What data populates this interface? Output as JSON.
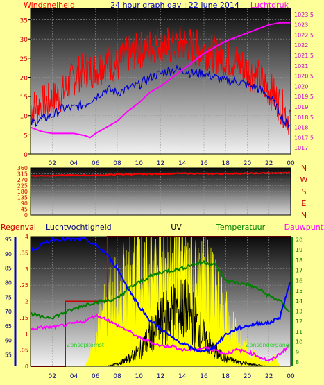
{
  "header": {
    "left_label": "Windsnelheid",
    "title": "24 hour graph day : 22 June 2014",
    "right_label": "Luchtdruk"
  },
  "lower_labels": {
    "regenval": "Regenval",
    "luchtvochtigheid": "Luchtvochtigheid",
    "uv": "UV",
    "temperatuur": "Temperatuur",
    "dauwpunt": "Dauwpunt",
    "sunrise": "Zonsopkomst",
    "sunset": "Zonsondergang"
  },
  "colors": {
    "background": "#ffff99",
    "wind_gust": "#ff0000",
    "wind_avg": "#0000cc",
    "pressure": "#ff00ff",
    "wind_dir": "#ff0000",
    "rain": "#cc0000",
    "humidity": "#0000ff",
    "uv": "#ffff00",
    "solar": "#000000",
    "temperature": "#008000",
    "dewpoint": "#ff00ff",
    "sun_label": "#33cc33"
  },
  "chart_data": [
    {
      "type": "line",
      "title": "24 hour graph day : 22 June 2014",
      "x_ticks": [
        "02",
        "04",
        "06",
        "08",
        "10",
        "12",
        "14",
        "16",
        "18",
        "20",
        "22",
        "00"
      ],
      "x_range_hours": [
        0,
        24
      ],
      "grid": true,
      "y_left": {
        "label": "Windsnelheid",
        "range": [
          0,
          38
        ],
        "ticks": [
          0,
          5,
          10,
          15,
          20,
          25,
          30,
          35
        ]
      },
      "y_right": {
        "label": "Luchtdruk",
        "range": [
          1016.7,
          1023.8
        ],
        "ticks": [
          1017,
          1017.5,
          1018,
          1018.5,
          1019,
          1019.5,
          1020,
          1020.5,
          1021,
          1021.5,
          1022,
          1022.5,
          1023,
          1023.5
        ]
      },
      "series": [
        {
          "axis": "left",
          "x": [
            0,
            1,
            2,
            3,
            4,
            5,
            6,
            7,
            8,
            9,
            10,
            11,
            12,
            13,
            14,
            15,
            16,
            17,
            18,
            19,
            20,
            21,
            22,
            23,
            23.5,
            24
          ],
          "values": [
            12,
            13,
            14,
            16,
            20,
            22,
            22,
            24,
            23,
            26,
            27,
            28,
            29,
            28,
            29,
            28,
            27,
            26,
            25,
            24,
            22,
            20,
            17,
            13,
            11,
            9
          ]
        },
        {
          "axis": "left",
          "x": [
            0,
            1,
            2,
            3,
            4,
            5,
            6,
            7,
            8,
            9,
            10,
            11,
            12,
            13,
            14,
            15,
            16,
            17,
            18,
            19,
            20,
            21,
            22,
            23,
            23.5,
            24
          ],
          "values": [
            8,
            9,
            10,
            12,
            12,
            13,
            15,
            17,
            16,
            17,
            18,
            20,
            21,
            22,
            22,
            21,
            21,
            20,
            19,
            19,
            18,
            17,
            15,
            11,
            8,
            8
          ]
        },
        {
          "axis": "right",
          "x": [
            0,
            1,
            2,
            3,
            4,
            5,
            5.5,
            6,
            7,
            8,
            9,
            10,
            11,
            12,
            13,
            14,
            15,
            16,
            17,
            18,
            19,
            20,
            21,
            22,
            23,
            24
          ],
          "values": [
            1018,
            1017.8,
            1017.7,
            1017.7,
            1017.7,
            1017.6,
            1017.5,
            1017.7,
            1018,
            1018.3,
            1018.8,
            1019.2,
            1019.7,
            1020,
            1020.4,
            1020.8,
            1021.2,
            1021.6,
            1021.9,
            1022.2,
            1022.4,
            1022.6,
            1022.8,
            1023,
            1023.1,
            1023.1
          ]
        }
      ]
    },
    {
      "type": "line",
      "x_ticks": [
        "02",
        "04",
        "06",
        "08",
        "10",
        "12",
        "14",
        "16",
        "18",
        "20",
        "22",
        "00"
      ],
      "x_range_hours": [
        0,
        24
      ],
      "grid": true,
      "y_left": {
        "range": [
          0,
          360
        ],
        "ticks": [
          0,
          45,
          90,
          135,
          180,
          225,
          270,
          315,
          360
        ]
      },
      "y_right_letters": [
        "N",
        "W",
        "S",
        "E",
        "N"
      ],
      "series": [
        {
          "x": [
            0,
            2,
            4,
            6,
            8,
            10,
            12,
            14,
            16,
            18,
            20,
            22,
            24
          ],
          "values": [
            300,
            302,
            305,
            303,
            310,
            312,
            315,
            318,
            315,
            316,
            318,
            320,
            322
          ]
        }
      ]
    },
    {
      "type": "area",
      "x_ticks": [
        "02",
        "04",
        "06",
        "08",
        "10",
        "12",
        "14",
        "16",
        "18",
        "20",
        "22",
        "00"
      ],
      "x_range_hours": [
        0,
        24
      ],
      "grid": true,
      "axes": {
        "regenval": {
          "range": [
            0,
            0.4
          ],
          "ticks": [
            0,
            0.05,
            0.1,
            0.15,
            0.2,
            0.25,
            0.3,
            0.35,
            0.4
          ]
        },
        "luchtvochtigheid": {
          "range": [
            51,
            96
          ],
          "ticks": [
            55,
            60,
            65,
            70,
            75,
            80,
            85,
            90,
            95
          ]
        },
        "temperature": {
          "range": [
            7.6,
            20.3
          ],
          "ticks": [
            8,
            9,
            10,
            11,
            12,
            13,
            14,
            15,
            16,
            17,
            18,
            19,
            20
          ]
        }
      },
      "series": [
        {
          "name": "Regenval",
          "axis": "regenval",
          "x": [
            0,
            3.2,
            3.2,
            7.1,
            7.1,
            24
          ],
          "values": [
            0,
            0,
            0.2,
            0.2,
            0.4,
            0.4
          ]
        },
        {
          "name": "Luchtvochtigheid",
          "axis": "luchtvochtigheid",
          "x": [
            0,
            1,
            2,
            3,
            4,
            5,
            6,
            7,
            8,
            9,
            10,
            11,
            12,
            13,
            14,
            15,
            16,
            17,
            18,
            19,
            20,
            21,
            22,
            23,
            24
          ],
          "values": [
            91,
            93,
            95,
            95,
            95,
            95,
            93,
            90,
            85,
            78,
            72,
            67,
            64,
            61,
            59,
            57,
            56,
            58,
            62,
            64,
            65,
            66,
            66,
            68,
            81
          ]
        },
        {
          "name": "Temperatuur",
          "axis": "temperature",
          "x": [
            0,
            1,
            2,
            3,
            4,
            5,
            6,
            7,
            8,
            9,
            10,
            11,
            12,
            13,
            14,
            15,
            16,
            17,
            18,
            19,
            20,
            21,
            22,
            23,
            24
          ],
          "values": [
            12.8,
            12.4,
            12.4,
            12.8,
            13.2,
            13.6,
            13.9,
            14,
            14.2,
            15.2,
            15.8,
            16.4,
            16.8,
            17,
            17.2,
            17.6,
            17.8,
            17.6,
            16,
            15.8,
            15.6,
            15.2,
            14.5,
            14,
            12.8
          ]
        },
        {
          "name": "Dauwpunt",
          "axis": "temperature",
          "x": [
            0,
            1,
            2,
            3,
            4,
            5,
            6,
            7,
            8,
            9,
            10,
            11,
            12,
            13,
            14,
            15,
            16,
            17,
            18,
            19,
            20,
            21,
            22,
            23,
            24
          ],
          "values": [
            11.2,
            11.4,
            11.4,
            11.6,
            11.8,
            12,
            12.6,
            12.2,
            11.6,
            11.1,
            10.4,
            10,
            9.6,
            9.6,
            9.2,
            9.2,
            9.4,
            9.2,
            8.8,
            9.2,
            9,
            8.6,
            8.1,
            8.8,
            9.8
          ]
        },
        {
          "name": "UV",
          "axis": "regenval",
          "x": [
            0,
            5,
            5.8,
            6.5,
            7,
            8,
            9,
            10,
            11,
            12,
            13,
            14,
            15,
            16,
            17,
            18,
            19,
            20,
            21,
            22,
            22.5,
            23
          ],
          "values": [
            0,
            0,
            0.06,
            0.15,
            0.2,
            0.25,
            0.3,
            0.34,
            0.37,
            0.38,
            0.38,
            0.36,
            0.34,
            0.3,
            0.24,
            0.17,
            0.1,
            0.06,
            0.03,
            0.01,
            0.03,
            0
          ]
        },
        {
          "name": "Solar",
          "axis": "regenval",
          "x": [
            0,
            7,
            8,
            9,
            10,
            11,
            12,
            13,
            14,
            15,
            16,
            17,
            18,
            19,
            20,
            21,
            22,
            23
          ],
          "values": [
            0,
            0,
            0.01,
            0.03,
            0.06,
            0.12,
            0.18,
            0.22,
            0.24,
            0.2,
            0.12,
            0.06,
            0.03,
            0.02,
            0.01,
            0.005,
            0,
            0
          ]
        }
      ],
      "sunrise_hour": 5.3,
      "sunset_hour": 22
    }
  ]
}
